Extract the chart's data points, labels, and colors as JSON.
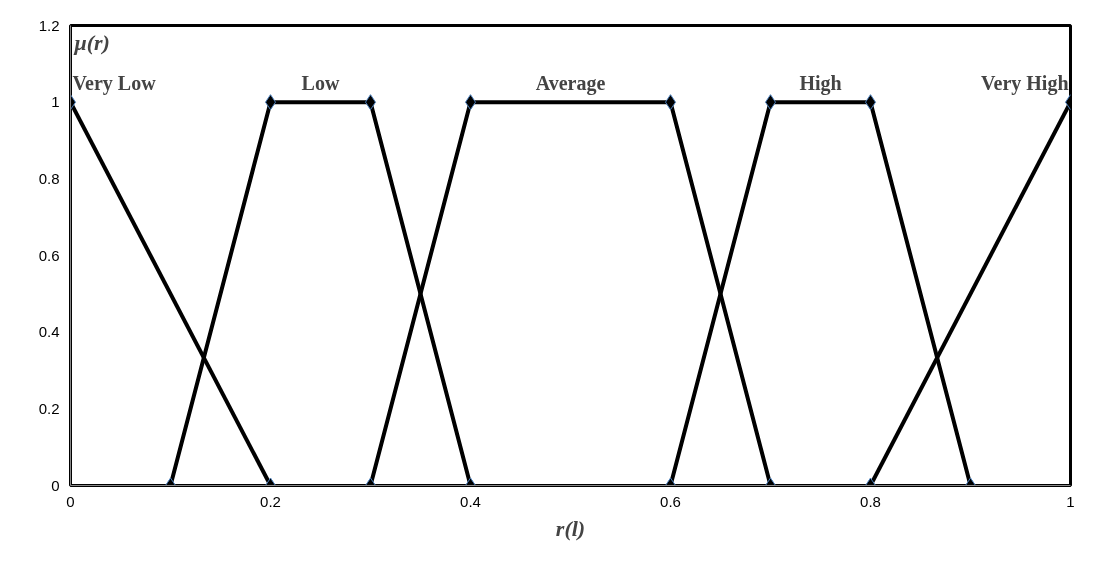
{
  "chart_data": {
    "type": "line",
    "xlabel": "r(l)",
    "ylabel": "μ(r)",
    "xlim": [
      0,
      1
    ],
    "xticks": [
      0,
      0.2,
      0.4,
      0.6,
      0.8,
      1
    ],
    "ylim": [
      0,
      1.2
    ],
    "yticks": [
      0,
      0.2,
      0.4,
      0.6,
      0.8,
      1,
      1.2
    ],
    "grid": false,
    "marker": "diamond",
    "line_style": "solid",
    "series": [
      {
        "name": "Very Low",
        "color": "#000000",
        "x": [
          0,
          0.2
        ],
        "values": [
          1,
          0
        ]
      },
      {
        "name": "Low",
        "color": "#000000",
        "x": [
          0.1,
          0.2,
          0.3,
          0.4
        ],
        "values": [
          0,
          1,
          1,
          0
        ]
      },
      {
        "name": "Average",
        "color": "#000000",
        "x": [
          0.3,
          0.4,
          0.6,
          0.7
        ],
        "values": [
          0,
          1,
          1,
          0
        ]
      },
      {
        "name": "High",
        "color": "#000000",
        "x": [
          0.6,
          0.7,
          0.8,
          0.9
        ],
        "values": [
          0,
          1,
          1,
          0
        ]
      },
      {
        "name": "Very High",
        "color": "#000000",
        "x": [
          0.8,
          1
        ],
        "values": [
          0,
          1
        ]
      }
    ]
  }
}
